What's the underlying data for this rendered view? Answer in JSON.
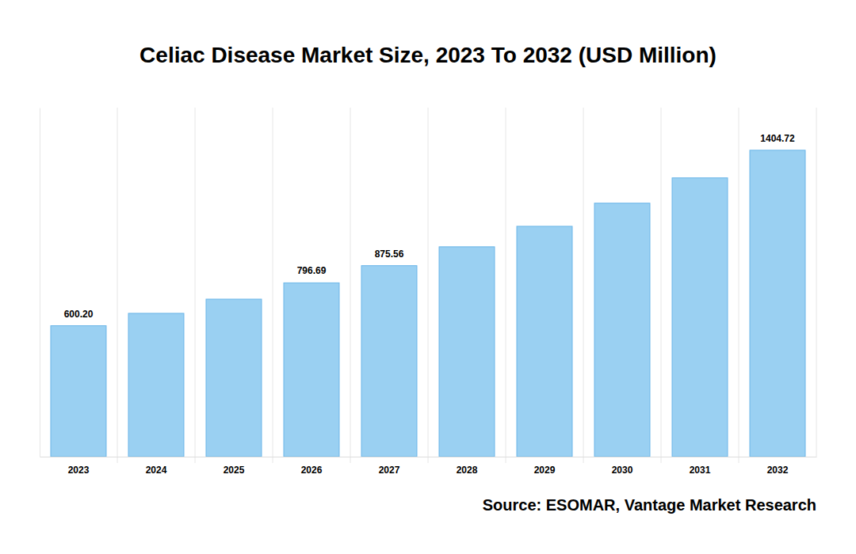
{
  "chart_data": {
    "type": "bar",
    "title": "Celiac Disease Market Size, 2023 To 2032 (USD Million)",
    "source": "Source: ESOMAR, Vantage Market Research",
    "categories": [
      "2023",
      "2024",
      "2025",
      "2026",
      "2027",
      "2028",
      "2029",
      "2030",
      "2031",
      "2032"
    ],
    "values": [
      600.2,
      657,
      722,
      796.69,
      875.56,
      962,
      1056,
      1162,
      1278,
      1404.72
    ],
    "value_labels": [
      "600.20",
      null,
      null,
      "796.69",
      "875.56",
      null,
      null,
      null,
      null,
      "1404.72"
    ],
    "color": "#9ad0f2",
    "ylim": [
      0,
      1600
    ],
    "grid": true,
    "data_labels": true,
    "tick_labels": "x"
  }
}
